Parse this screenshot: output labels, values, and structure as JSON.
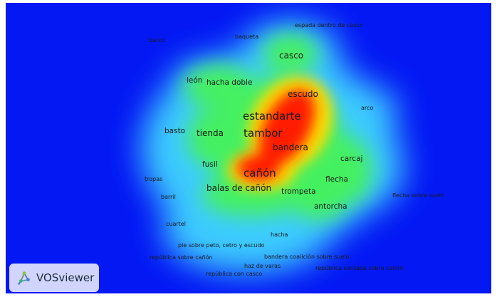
{
  "app": {
    "name": "VOSviewer",
    "logo_icon": "vosviewer-logo-icon"
  },
  "view": "density-visualization",
  "colors": {
    "low": "#0418f4",
    "mid": "#33ff33",
    "high": "#ff0000",
    "peak": "#ffee00"
  },
  "terms": [
    {
      "id": "espada-dentro-de-casco",
      "label": "espada dentro de casco",
      "size": "s"
    },
    {
      "id": "barco",
      "label": "barco",
      "size": "s"
    },
    {
      "id": "baqueta",
      "label": "baqueta",
      "size": "s"
    },
    {
      "id": "casco",
      "label": "casco",
      "size": "l"
    },
    {
      "id": "leon",
      "label": "león",
      "size": "m"
    },
    {
      "id": "hacha-doble",
      "label": "hacha doble",
      "size": "m"
    },
    {
      "id": "escudo",
      "label": "escudo",
      "size": "l"
    },
    {
      "id": "arco",
      "label": "arco",
      "size": "s"
    },
    {
      "id": "estandarte",
      "label": "estandarte",
      "size": "xl"
    },
    {
      "id": "basto",
      "label": "basto",
      "size": "m"
    },
    {
      "id": "tienda",
      "label": "tienda",
      "size": "l"
    },
    {
      "id": "tambor",
      "label": "tambor",
      "size": "xl"
    },
    {
      "id": "bandera",
      "label": "bandera",
      "size": "l"
    },
    {
      "id": "carcaj",
      "label": "carcaj",
      "size": "m"
    },
    {
      "id": "fusil",
      "label": "fusil",
      "size": "m"
    },
    {
      "id": "canon",
      "label": "cañón",
      "size": "xl"
    },
    {
      "id": "tropas",
      "label": "tropas",
      "size": "s"
    },
    {
      "id": "flecha",
      "label": "flecha",
      "size": "m"
    },
    {
      "id": "balas-de-canon",
      "label": "balas de cañón",
      "size": "l"
    },
    {
      "id": "trompeta",
      "label": "trompeta",
      "size": "m"
    },
    {
      "id": "barril",
      "label": "barril",
      "size": "s"
    },
    {
      "id": "flecha-sobre-suelo",
      "label": "flecha sobre suelo",
      "size": "s"
    },
    {
      "id": "antorcha",
      "label": "antorcha",
      "size": "m"
    },
    {
      "id": "cuartel",
      "label": "cuartel",
      "size": "s"
    },
    {
      "id": "hacha",
      "label": "hacha",
      "size": "s"
    },
    {
      "id": "pie-sobre-peto",
      "label": "pie sobre peto, cetro y escudo",
      "size": "s"
    },
    {
      "id": "republica-sobre-canon",
      "label": "república sobre cañón",
      "size": "s"
    },
    {
      "id": "bandera-coalicion",
      "label": "bandera coalición sobre suelo",
      "size": "s"
    },
    {
      "id": "haz-de-varas",
      "label": "haz de varas",
      "size": "s"
    },
    {
      "id": "republica-sentada",
      "label": "república sentada sobre cañón",
      "size": "s"
    },
    {
      "id": "republica-con-casco",
      "label": "república con casco",
      "size": "s"
    }
  ]
}
